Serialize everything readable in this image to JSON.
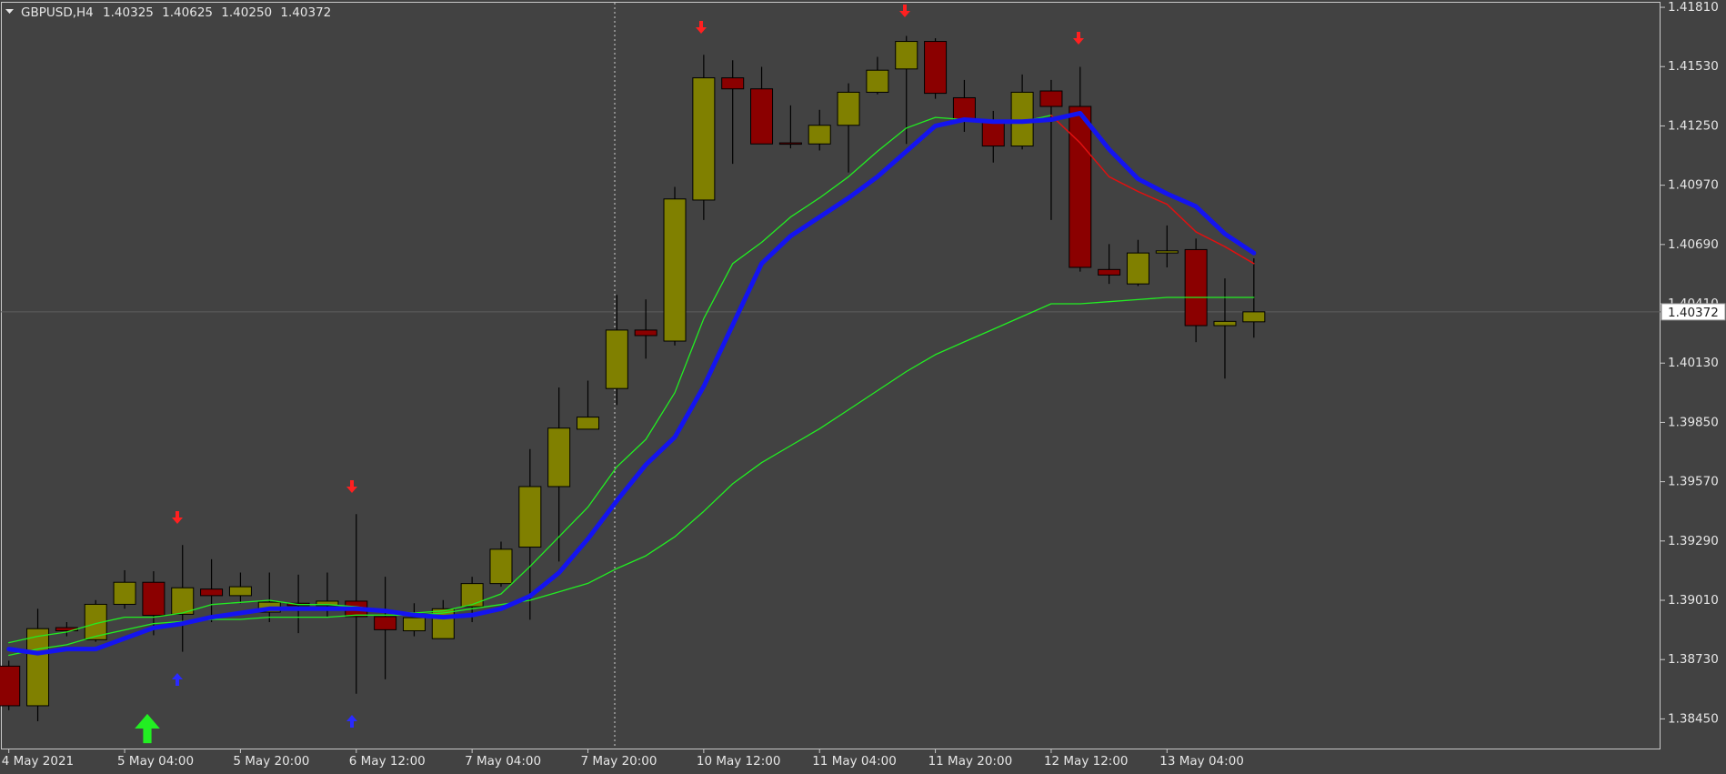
{
  "chart_data": {
    "type": "candlestick",
    "title": "GBPUSD,H4",
    "header_values": [
      "1.40325",
      "1.40625",
      "1.40250",
      "1.40372"
    ],
    "categories": [
      "4 May 2021",
      null,
      null,
      null,
      "5 May 04:00",
      null,
      null,
      null,
      "5 May 20:00",
      null,
      null,
      null,
      "6 May 12:00",
      null,
      null,
      null,
      "7 May 04:00",
      null,
      null,
      null,
      "7 May 20:00",
      null,
      null,
      null,
      "10 May 12:00",
      null,
      null,
      null,
      "11 May 04:00",
      null,
      null,
      null,
      "11 May 20:00",
      null,
      null,
      null,
      "12 May 12:00",
      null,
      null,
      null,
      "13 May 04:00",
      null,
      null,
      null
    ],
    "open": [
      1.38699,
      1.38512,
      1.38881,
      1.38824,
      1.38991,
      1.39095,
      1.38944,
      1.39063,
      1.39032,
      1.38954,
      1.38996,
      1.38985,
      1.39006,
      1.38933,
      1.38866,
      1.38829,
      1.3898,
      1.39089,
      1.39261,
      1.39547,
      1.39818,
      1.4001,
      1.40286,
      1.40234,
      1.409,
      1.41477,
      1.41425,
      1.4117,
      1.41165,
      1.41253,
      1.41409,
      1.41519,
      1.41649,
      1.41383,
      1.41274,
      1.41155,
      1.41415,
      1.41342,
      1.40572,
      1.40504,
      1.4065,
      1.40666,
      1.40307,
      1.40325
    ],
    "high": [
      1.38725,
      1.3897,
      1.38907,
      1.39011,
      1.39152,
      1.39147,
      1.39271,
      1.39204,
      1.39141,
      1.39141,
      1.39131,
      1.39141,
      1.39417,
      1.39121,
      1.38996,
      1.39011,
      1.39121,
      1.39287,
      1.39724,
      1.40015,
      1.40047,
      1.40452,
      1.40431,
      1.40962,
      1.41586,
      1.4156,
      1.41529,
      1.41347,
      1.41326,
      1.41451,
      1.41576,
      1.41675,
      1.41664,
      1.41467,
      1.41321,
      1.41493,
      1.41467,
      1.41529,
      1.40692,
      1.40712,
      1.4078,
      1.40718,
      1.4053,
      1.40625
    ],
    "low": [
      1.38491,
      1.38439,
      1.3884,
      1.38814,
      1.3897,
      1.38845,
      1.38767,
      1.38907,
      1.38996,
      1.38907,
      1.38855,
      1.38933,
      1.38569,
      1.38637,
      1.3884,
      1.38829,
      1.38907,
      1.39074,
      1.38918,
      1.39193,
      1.39818,
      1.39932,
      1.40151,
      1.40213,
      1.40806,
      1.41071,
      1.41165,
      1.41144,
      1.41134,
      1.4103,
      1.41399,
      1.41165,
      1.41378,
      1.41222,
      1.41077,
      1.41139,
      1.40806,
      1.40562,
      1.40504,
      1.40494,
      1.40582,
      1.40229,
      1.40057,
      1.4025
    ],
    "close": [
      1.38512,
      1.38876,
      1.38866,
      1.38991,
      1.39095,
      1.38939,
      1.39069,
      1.39032,
      1.39074,
      1.39001,
      1.38985,
      1.39006,
      1.38933,
      1.38871,
      1.38928,
      1.3897,
      1.39089,
      1.39251,
      1.39547,
      1.39823,
      1.39875,
      1.40286,
      1.4026,
      1.40905,
      1.41477,
      1.41425,
      1.41165,
      1.41165,
      1.41253,
      1.41409,
      1.41513,
      1.41649,
      1.41404,
      1.41274,
      1.41155,
      1.41409,
      1.41342,
      1.40582,
      1.40546,
      1.4065,
      1.4066,
      1.40307,
      1.40327,
      1.40372
    ],
    "up_color": "#808000",
    "down_color": "#8b0000",
    "lines": [
      {
        "color": "#22ee22",
        "width": 1.3,
        "values": [
          1.3875,
          1.3878,
          1.388,
          1.3884,
          1.3887,
          1.389,
          1.3891,
          1.3892,
          1.3892,
          1.3893,
          1.3893,
          1.3893,
          1.3894,
          1.3894,
          1.3894,
          1.3895,
          1.3897,
          1.3899,
          1.3901,
          1.3905,
          1.3909,
          1.3916,
          1.3922,
          1.3931,
          1.3943,
          1.3956,
          1.3966,
          1.3974,
          1.3982,
          1.3991,
          1.4,
          1.4009,
          1.4017,
          1.4023,
          1.4029,
          1.4035,
          1.4041,
          1.4041,
          1.4042,
          1.4043,
          1.4044,
          1.4044,
          1.4044,
          1.4044
        ]
      },
      {
        "color": "#22ee22",
        "width": 1.3,
        "values": [
          1.3881,
          1.3884,
          1.3886,
          1.389,
          1.3893,
          1.3893,
          1.3895,
          1.3899,
          1.39,
          1.3901,
          1.3899,
          1.3899,
          1.3898,
          1.3896,
          1.3895,
          1.3896,
          1.3899,
          1.3904,
          1.3917,
          1.3931,
          1.3945,
          1.3964,
          1.3977,
          1.3999,
          1.4034,
          1.406,
          1.407,
          1.4082,
          1.4091,
          1.4101,
          1.4113,
          1.4124,
          1.4129,
          1.4128,
          1.4127,
          1.4127,
          1.413,
          null,
          null,
          null,
          null,
          null,
          null,
          null
        ]
      },
      {
        "color": "#e01010",
        "width": 1.5,
        "values": [
          null,
          null,
          null,
          null,
          null,
          null,
          null,
          null,
          null,
          null,
          null,
          null,
          null,
          null,
          null,
          null,
          null,
          null,
          null,
          null,
          null,
          null,
          null,
          null,
          null,
          null,
          null,
          null,
          null,
          null,
          null,
          null,
          null,
          null,
          null,
          null,
          1.413,
          1.4117,
          1.4101,
          1.4094,
          1.4088,
          1.4075,
          1.4068,
          1.406
        ]
      },
      {
        "color": "#1414f0",
        "width": 5,
        "values": [
          1.3878,
          1.3876,
          1.3878,
          1.3878,
          1.3883,
          1.3888,
          1.389,
          1.3893,
          1.3895,
          1.3897,
          1.3897,
          1.3897,
          1.3897,
          1.3896,
          1.3894,
          1.3893,
          1.3894,
          1.3897,
          1.3903,
          1.3914,
          1.393,
          1.3948,
          1.3965,
          1.3978,
          1.4002,
          1.4031,
          1.406,
          1.4073,
          1.4082,
          1.4091,
          1.4101,
          1.4113,
          1.4125,
          1.4128,
          1.4127,
          1.4127,
          1.4128,
          1.4131,
          1.4114,
          1.41,
          1.4093,
          1.4087,
          1.4074,
          1.4065
        ]
      }
    ],
    "current_price": 1.40372,
    "ylim": [
      1.3831,
      1.41836
    ],
    "yticks": [
      {
        "value": 1.4181,
        "label": "1.41810"
      },
      {
        "value": 1.4153,
        "label": "1.41530"
      },
      {
        "value": 1.4125,
        "label": "1.41250"
      },
      {
        "value": 1.4097,
        "label": "1.40970"
      },
      {
        "value": 1.4069,
        "label": "1.40690"
      },
      {
        "value": 1.4041,
        "label": "1.40410"
      },
      {
        "value": 1.4013,
        "label": "1.40130"
      },
      {
        "value": 1.3985,
        "label": "1.39850"
      },
      {
        "value": 1.3957,
        "label": "1.39570"
      },
      {
        "value": 1.3929,
        "label": "1.39290"
      },
      {
        "value": 1.3901,
        "label": "1.39010"
      },
      {
        "value": 1.3873,
        "label": "1.38730"
      },
      {
        "value": 1.3845,
        "label": "1.38450"
      }
    ]
  }
}
